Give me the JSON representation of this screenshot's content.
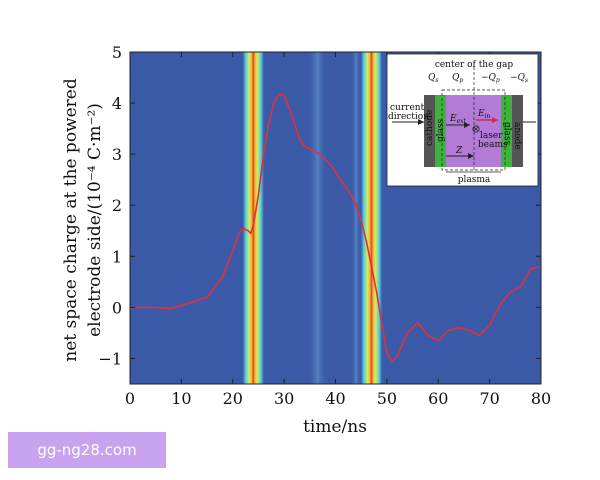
{
  "chart_data": {
    "type": "line",
    "xlabel": "time/ns",
    "ylabel_line1": "net space charge at the powered",
    "ylabel_line2": "electrode side/(10⁻⁴ C·m⁻²)",
    "xlim": [
      0,
      80
    ],
    "ylim": [
      -1.5,
      5
    ],
    "x_ticks": [
      0,
      10,
      20,
      30,
      40,
      50,
      60,
      70,
      80
    ],
    "y_ticks": [
      -1,
      0,
      1,
      2,
      3,
      4,
      5
    ],
    "x_tick_labels": [
      "0",
      "10",
      "20",
      "30",
      "40",
      "50",
      "60",
      "70",
      "80"
    ],
    "y_tick_labels": [
      "−1",
      "0",
      "1",
      "2",
      "3",
      "4",
      "5"
    ],
    "background_color": "#3a5aa8",
    "line_color": "#e0303a",
    "grid": false,
    "series": [
      {
        "x": [
          0,
          4,
          8,
          12,
          15,
          18,
          20,
          21,
          22,
          23,
          23.5,
          24,
          25,
          26,
          27,
          28,
          29,
          30,
          31,
          32,
          33,
          34,
          35,
          36,
          37,
          38,
          39,
          40,
          41,
          42,
          43,
          44,
          45,
          46,
          47,
          48,
          49,
          50,
          51,
          52,
          54,
          56,
          58,
          60,
          62,
          64,
          66,
          68,
          70,
          72,
          74,
          76,
          78,
          80
        ],
        "y": [
          0.0,
          0.0,
          -0.02,
          0.1,
          0.2,
          0.6,
          1.1,
          1.4,
          1.55,
          1.5,
          1.45,
          1.6,
          2.2,
          3.0,
          3.6,
          4.0,
          4.18,
          4.15,
          3.9,
          3.6,
          3.3,
          3.15,
          3.1,
          3.05,
          3.0,
          2.9,
          2.8,
          2.65,
          2.5,
          2.35,
          2.2,
          2.0,
          1.7,
          1.3,
          0.8,
          0.3,
          -0.3,
          -0.9,
          -1.05,
          -0.95,
          -0.5,
          -0.3,
          -0.55,
          -0.65,
          -0.45,
          -0.4,
          -0.45,
          -0.55,
          -0.35,
          0.05,
          0.3,
          0.4,
          0.75,
          0.8
        ]
      }
    ],
    "heatmap_bands": [
      {
        "x_center": 24,
        "width": 4.5
      },
      {
        "x_center": 47,
        "width": 4.5
      }
    ],
    "faint_bands": [
      {
        "x_center": 36.5,
        "width": 4
      },
      {
        "x_center": 44,
        "width": 2
      }
    ]
  },
  "inset": {
    "labels": {
      "qs_left": "Q",
      "qs_left_sub": "s",
      "center": "center of the gap",
      "qp_left": "Q",
      "qp_left_sub": "p",
      "qp_right": "−Q",
      "qp_right_sub": "p",
      "qs_right": "−Q",
      "qs_right_sub": "s",
      "current_line1": "current",
      "current_line2": "direction",
      "cathode": "cathode",
      "glass_left": "glass",
      "glass_right": "glass",
      "anode": "anode",
      "e_ext": "E",
      "e_ext_sub": "ext",
      "e_in": "E",
      "e_in_sub": "in",
      "laser_line1": "laser",
      "laser_line2": "beams",
      "z": "Z",
      "plasma": "plasma"
    },
    "colors": {
      "electrode": "#555555",
      "glass": "#3cb43c",
      "plasma": "#b27cd6",
      "arrow": "#d02a5a"
    }
  },
  "watermark": "gg-ng28.com"
}
